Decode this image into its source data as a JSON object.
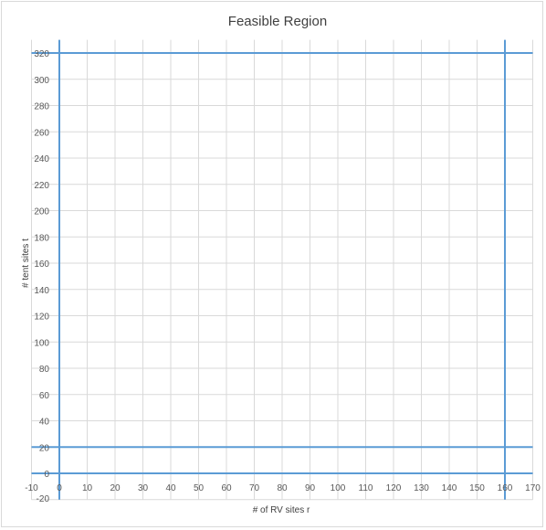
{
  "chart_data": {
    "type": "line",
    "title": "Feasible Region",
    "xlabel": "# of RV sites r",
    "ylabel": "# tent sites t",
    "xlim": [
      -10,
      170
    ],
    "ylim": [
      -20,
      330
    ],
    "x_ticks": [
      -10,
      0,
      10,
      20,
      30,
      40,
      50,
      60,
      70,
      80,
      90,
      100,
      110,
      120,
      130,
      140,
      150,
      160,
      170
    ],
    "y_ticks": [
      -20,
      0,
      20,
      40,
      60,
      80,
      100,
      120,
      140,
      160,
      180,
      200,
      220,
      240,
      260,
      280,
      300,
      320
    ],
    "grid": true,
    "legend": "none",
    "line_color": "#5b9bd5",
    "series": [
      {
        "points": [
          [
            -10,
            320
          ],
          [
            170,
            320
          ]
        ]
      },
      {
        "points": [
          [
            -10,
            20
          ],
          [
            170,
            20
          ]
        ]
      },
      {
        "points": [
          [
            160,
            -20
          ],
          [
            160,
            330
          ]
        ]
      },
      {
        "points": [
          [
            0,
            -20
          ],
          [
            0,
            330
          ]
        ]
      },
      {
        "points": [
          [
            -10,
            0
          ],
          [
            170,
            0
          ]
        ]
      }
    ]
  }
}
